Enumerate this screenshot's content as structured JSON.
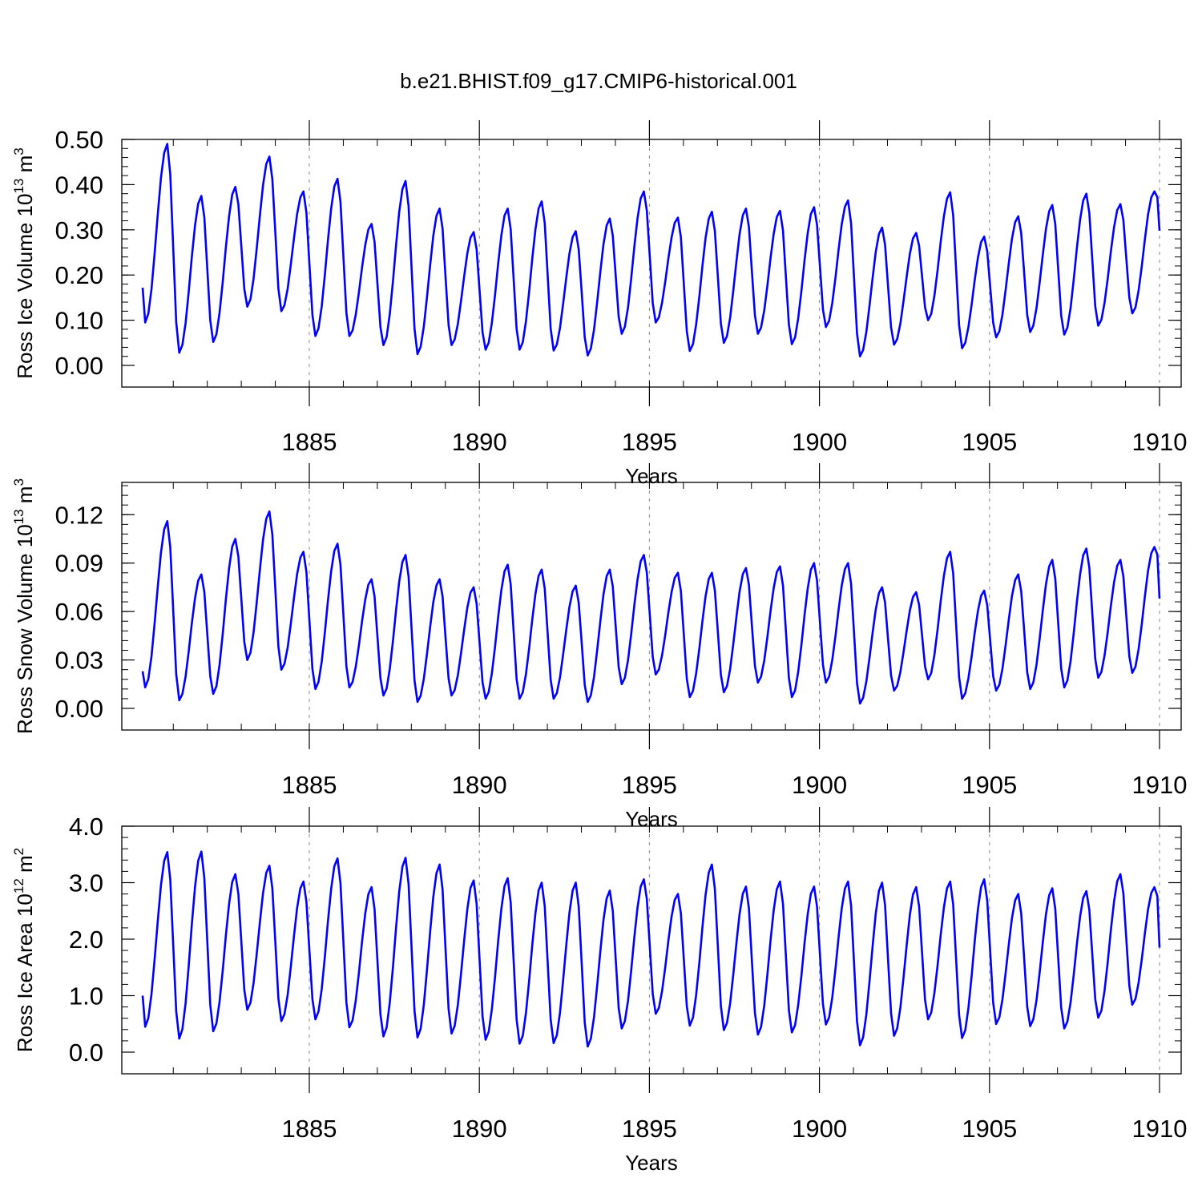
{
  "title": "b.e21.BHIST.f09_g17.CMIP6-historical.001",
  "colors": {
    "series": "#0000ff",
    "axis": "#000000",
    "grid": "#888888"
  },
  "chart_data": [
    {
      "type": "line",
      "xlabel": "Years",
      "ylabel": {
        "text": "Ross Ice Volume 10",
        "exp": "13",
        "unit": " m",
        "unit_exp": "3"
      },
      "xlim": [
        1880,
        1910
      ],
      "ylim": [
        0,
        0.5
      ],
      "x_ticks": [
        1885,
        1890,
        1895,
        1900,
        1905,
        1910
      ],
      "x_tick_labels": [
        "1885",
        "1890",
        "1895",
        "1900",
        "1905",
        "1910"
      ],
      "y_ticks": [
        0,
        0.1,
        0.2,
        0.3,
        0.4,
        0.5
      ],
      "y_tick_labels": [
        "0.00",
        "0.10",
        "0.20",
        "0.30",
        "0.40",
        "0.50"
      ],
      "grid": "vertical dashed at major x ticks",
      "series": [
        {
          "peaks": [
            0.49,
            0.375,
            0.395,
            0.462,
            0.385,
            0.413,
            0.313,
            0.408,
            0.347,
            0.295,
            0.347,
            0.363,
            0.297,
            0.325,
            0.385,
            0.327,
            0.34,
            0.347,
            0.342,
            0.35,
            0.365,
            0.305,
            0.293,
            0.383,
            0.285,
            0.33,
            0.355,
            0.38,
            0.357,
            0.385
          ],
          "troughs": [
            0.095,
            0.028,
            0.052,
            0.13,
            0.12,
            0.065,
            0.065,
            0.045,
            0.025,
            0.045,
            0.035,
            0.035,
            0.033,
            0.022,
            0.07,
            0.095,
            0.032,
            0.05,
            0.07,
            0.047,
            0.085,
            0.02,
            0.046,
            0.1,
            0.038,
            0.062,
            0.074,
            0.068,
            0.088,
            0.115
          ],
          "x_start_value": 0.172,
          "x_end_value": 0.298
        }
      ]
    },
    {
      "type": "line",
      "xlabel": "Years",
      "ylabel": {
        "text": "Ross Snow Volume 10",
        "exp": "13",
        "unit": " m",
        "unit_exp": "3"
      },
      "xlim": [
        1880,
        1910
      ],
      "ylim": [
        0,
        0.14
      ],
      "x_ticks": [
        1885,
        1890,
        1895,
        1900,
        1905,
        1910
      ],
      "x_tick_labels": [
        "1885",
        "1890",
        "1895",
        "1900",
        "1905",
        "1910"
      ],
      "y_ticks": [
        0,
        0.03,
        0.06,
        0.09,
        0.12
      ],
      "y_tick_labels": [
        "0.00",
        "0.03",
        "0.06",
        "0.09",
        "0.12"
      ],
      "grid": "vertical dashed at major x ticks",
      "series": [
        {
          "peaks": [
            0.116,
            0.083,
            0.105,
            0.122,
            0.097,
            0.102,
            0.08,
            0.095,
            0.08,
            0.075,
            0.089,
            0.086,
            0.076,
            0.086,
            0.095,
            0.084,
            0.084,
            0.087,
            0.088,
            0.09,
            0.09,
            0.075,
            0.072,
            0.097,
            0.073,
            0.083,
            0.092,
            0.099,
            0.092,
            0.1
          ],
          "troughs": [
            0.013,
            0.005,
            0.009,
            0.03,
            0.024,
            0.012,
            0.013,
            0.008,
            0.004,
            0.008,
            0.006,
            0.006,
            0.006,
            0.004,
            0.015,
            0.021,
            0.007,
            0.01,
            0.016,
            0.007,
            0.016,
            0.003,
            0.011,
            0.018,
            0.006,
            0.011,
            0.012,
            0.013,
            0.019,
            0.022
          ],
          "x_start_value": 0.023,
          "x_end_value": 0.068
        }
      ]
    },
    {
      "type": "line",
      "xlabel": "Years",
      "ylabel": {
        "text": "Ross Ice Area 10",
        "exp": "12",
        "unit": " m",
        "unit_exp": "2"
      },
      "xlim": [
        1880,
        1910
      ],
      "ylim": [
        0,
        4.0
      ],
      "x_ticks": [
        1885,
        1890,
        1895,
        1900,
        1905,
        1910
      ],
      "x_tick_labels": [
        "1885",
        "1890",
        "1895",
        "1900",
        "1905",
        "1910"
      ],
      "y_ticks": [
        0,
        1,
        2,
        3,
        4
      ],
      "y_tick_labels": [
        "0.0",
        "1.0",
        "2.0",
        "3.0",
        "4.0"
      ],
      "grid": "vertical dashed at major x ticks",
      "series": [
        {
          "peaks": [
            3.54,
            3.55,
            3.15,
            3.3,
            3.02,
            3.43,
            2.92,
            3.44,
            3.32,
            3.04,
            3.08,
            3.0,
            3.0,
            2.86,
            3.06,
            2.8,
            3.32,
            2.93,
            3.02,
            2.93,
            3.02,
            3.0,
            2.92,
            3.02,
            3.06,
            2.8,
            2.9,
            2.85,
            3.15,
            2.92
          ],
          "troughs": [
            0.45,
            0.24,
            0.37,
            0.75,
            0.55,
            0.58,
            0.44,
            0.28,
            0.26,
            0.33,
            0.22,
            0.15,
            0.16,
            0.1,
            0.42,
            0.68,
            0.47,
            0.39,
            0.31,
            0.35,
            0.49,
            0.12,
            0.29,
            0.58,
            0.25,
            0.5,
            0.46,
            0.42,
            0.61,
            0.84
          ],
          "x_start_value": 1.0,
          "x_end_value": 1.85
        }
      ]
    }
  ]
}
